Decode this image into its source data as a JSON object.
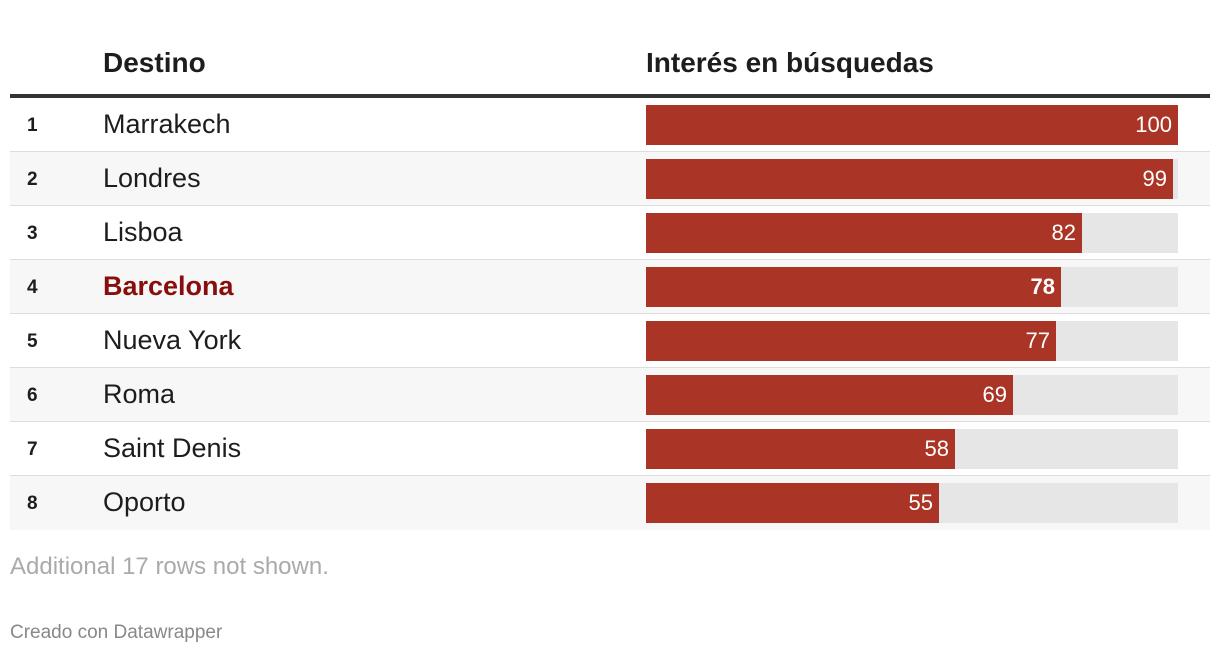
{
  "columns": {
    "destination": "Destino",
    "interest": "Interés en búsquedas"
  },
  "chart_data": {
    "type": "bar",
    "categories": [
      "Marrakech",
      "Londres",
      "Lisboa",
      "Barcelona",
      "Nueva York",
      "Roma",
      "Saint Denis",
      "Oporto"
    ],
    "values": [
      100,
      99,
      82,
      78,
      77,
      69,
      58,
      55
    ],
    "ranks": [
      "1",
      "2",
      "3",
      "4",
      "5",
      "6",
      "7",
      "8"
    ],
    "highlighted": "Barcelona",
    "xlim": [
      0,
      100
    ],
    "colors": {
      "bar": "#aa3425",
      "track": "#e6e6e6",
      "highlight_text": "#8a0d0d"
    }
  },
  "notes": "Additional 17 rows not shown.",
  "byline": "Creado con Datawrapper"
}
